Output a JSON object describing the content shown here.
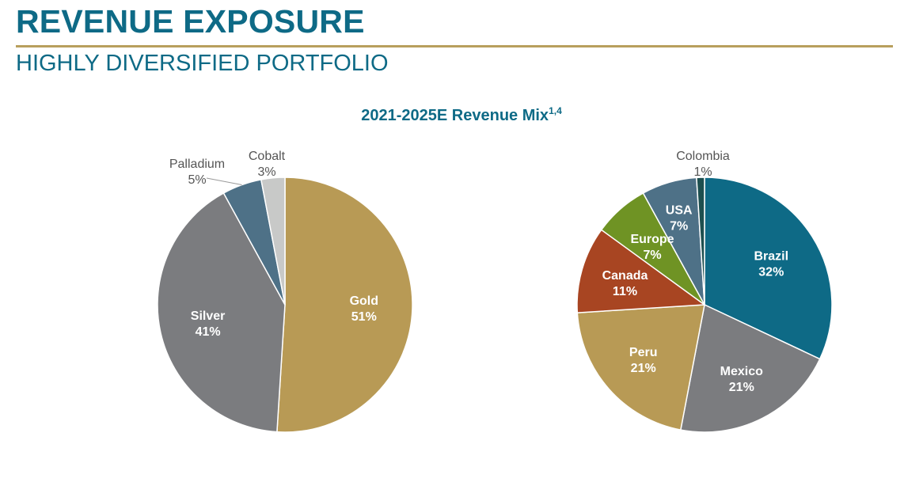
{
  "header": {
    "title": "REVENUE EXPOSURE",
    "subtitle": "HIGHLY DIVERSIFIED PORTFOLIO"
  },
  "chart_title": {
    "text": "2021-2025E Revenue Mix",
    "superscript": "1,4"
  },
  "chart_data": [
    {
      "type": "pie",
      "categories": [
        "Gold",
        "Silver",
        "Palladium",
        "Cobalt"
      ],
      "values": [
        51,
        41,
        5,
        3
      ],
      "labels": [
        "51%",
        "41%",
        "5%",
        "3%"
      ],
      "colors": [
        "#b89a55",
        "#7b7c7f",
        "#4e7187",
        "#c8c9c8"
      ]
    },
    {
      "type": "pie",
      "categories": [
        "Brazil",
        "Mexico",
        "Peru",
        "Canada",
        "Europe",
        "USA",
        "Colombia"
      ],
      "values": [
        32,
        21,
        21,
        11,
        7,
        7,
        1
      ],
      "labels": [
        "32%",
        "21%",
        "21%",
        "11%",
        "7%",
        "7%",
        "1%"
      ],
      "colors": [
        "#0e6a86",
        "#7b7c7f",
        "#b89a55",
        "#a84522",
        "#6f9324",
        "#4e7187",
        "#1d4f4f"
      ]
    }
  ]
}
